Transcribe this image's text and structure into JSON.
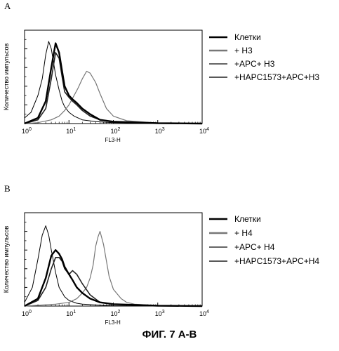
{
  "figure": {
    "caption": "ФИГ. 7 А-В"
  },
  "chart_data": [
    {
      "panel": "A",
      "type": "line",
      "xlabel": "FL3-H",
      "ylabel": "Количество импульсов",
      "xscale": "log",
      "xlim": [
        1,
        10000
      ],
      "ylim": [
        0,
        50
      ],
      "ylim_note": "",
      "x_ticks": [
        {
          "base": "10",
          "exp": "0"
        },
        {
          "base": "10",
          "exp": "1"
        },
        {
          "base": "10",
          "exp": "2"
        },
        {
          "base": "10",
          "exp": "3"
        },
        {
          "base": "10",
          "exp": "4"
        }
      ],
      "y_ticks": [
        "0",
        "10",
        "20",
        "30",
        "40",
        "50"
      ],
      "legend_position": "right",
      "series": [
        {
          "name": "Клетки",
          "style": "thin",
          "color": "#000000",
          "x": [
            1,
            1.4,
            2,
            2.5,
            3,
            3.5,
            4,
            5,
            6,
            7,
            8,
            10,
            13,
            20,
            40,
            100,
            1000,
            10000
          ],
          "y": [
            3,
            6,
            15,
            24,
            37,
            44,
            40,
            26,
            18,
            12,
            9,
            6,
            4,
            2,
            1,
            0.5,
            0.2,
            0
          ]
        },
        {
          "name": "+ H3",
          "style": "gray",
          "color": "#777777",
          "x": [
            1,
            2,
            4,
            6,
            8,
            10,
            13,
            16,
            20,
            25,
            30,
            40,
            50,
            70,
            100,
            200,
            1000,
            10000
          ],
          "y": [
            0,
            0.5,
            2,
            4,
            7,
            10,
            15,
            19,
            24,
            28,
            27,
            22,
            16,
            8,
            4,
            1.5,
            0.3,
            0
          ]
        },
        {
          "name": "+APC+ H3",
          "style": "medium",
          "color": "#222222",
          "x": [
            1,
            2,
            3,
            4,
            5,
            6,
            7,
            8,
            10,
            12,
            15,
            20,
            30,
            50,
            100,
            1000,
            10000
          ],
          "y": [
            0,
            2,
            8,
            24,
            38,
            35,
            25,
            17,
            14,
            12,
            10,
            7,
            4,
            2,
            1,
            0.2,
            0
          ]
        },
        {
          "name": "+HAPC1573+APC+H3",
          "style": "thick",
          "color": "#000000",
          "x": [
            1,
            2,
            3,
            4,
            5,
            6,
            7,
            8,
            10,
            12,
            15,
            20,
            30,
            50,
            100,
            1000,
            10000
          ],
          "y": [
            0,
            3,
            12,
            30,
            43,
            38,
            28,
            20,
            15,
            13,
            11,
            8,
            5,
            2,
            1,
            0.2,
            0
          ]
        }
      ]
    },
    {
      "panel": "B",
      "type": "line",
      "xlabel": "FL3-H",
      "ylabel": "Количество импульсов",
      "xscale": "log",
      "xlim": [
        1,
        10000
      ],
      "ylim": [
        0,
        50
      ],
      "x_ticks": [
        {
          "base": "10",
          "exp": "0"
        },
        {
          "base": "10",
          "exp": "1"
        },
        {
          "base": "10",
          "exp": "2"
        },
        {
          "base": "10",
          "exp": "3"
        },
        {
          "base": "10",
          "exp": "4"
        }
      ],
      "y_ticks": [
        "0",
        "10",
        "20",
        "30",
        "40",
        "50"
      ],
      "legend_position": "right",
      "series": [
        {
          "name": "Клетки",
          "style": "thin",
          "color": "#000000",
          "x": [
            1,
            1.5,
            2,
            2.5,
            3,
            3.5,
            4,
            5,
            6,
            8,
            10,
            15,
            20,
            50,
            100,
            1000,
            10000
          ],
          "y": [
            2,
            10,
            25,
            38,
            43,
            38,
            30,
            18,
            10,
            5,
            3,
            1.5,
            1,
            0.5,
            0.2,
            0,
            0
          ]
        },
        {
          "name": "+ H4",
          "style": "gray",
          "color": "#777777",
          "x": [
            1,
            5,
            10,
            15,
            20,
            25,
            30,
            35,
            40,
            45,
            50,
            60,
            70,
            80,
            100,
            150,
            200,
            300,
            1000,
            10000
          ],
          "y": [
            0,
            1,
            2,
            4,
            7,
            10,
            15,
            22,
            32,
            37,
            40,
            33,
            24,
            16,
            9,
            4,
            2,
            1,
            0.3,
            0
          ]
        },
        {
          "name": "+APC+ H4",
          "style": "medium",
          "color": "#222222",
          "x": [
            1,
            2,
            3,
            4,
            5,
            6,
            7,
            8,
            10,
            12,
            15,
            20,
            30,
            50,
            100,
            1000,
            10000
          ],
          "y": [
            0,
            3,
            10,
            20,
            26,
            26,
            24,
            20,
            17,
            19,
            17,
            12,
            6,
            2,
            1,
            0.2,
            0
          ]
        },
        {
          "name": "+HAPC1573+APC+H4",
          "style": "thick",
          "color": "#000000",
          "x": [
            1,
            2,
            3,
            4,
            5,
            6,
            7,
            8,
            10,
            12,
            15,
            20,
            30,
            50,
            100,
            1000,
            10000
          ],
          "y": [
            0,
            4,
            15,
            27,
            30,
            28,
            25,
            21,
            17,
            14,
            10,
            7,
            4,
            2,
            1,
            0.2,
            0
          ]
        }
      ]
    }
  ]
}
